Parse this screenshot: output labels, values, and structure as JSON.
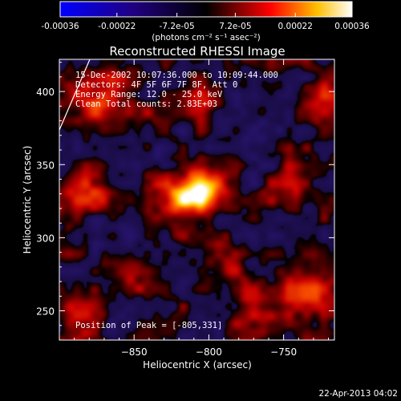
{
  "colorbar": {
    "tick_labels": [
      "-0.00036",
      "-0.00022",
      "-7.2e-05",
      "7.2e-05",
      "0.00022",
      "0.00036"
    ],
    "unit_label": "(photons cm⁻² s⁻¹ asec⁻²)",
    "range": [
      -0.00036,
      0.00036
    ]
  },
  "chart_data": {
    "type": "heatmap",
    "title": "Reconstructed RHESSI Image",
    "xlabel": "Heliocentric X (arcsec)",
    "ylabel": "Heliocentric Y (arcsec)",
    "xlim": [
      -900,
      -716
    ],
    "ylim": [
      230,
      422
    ],
    "x_ticks": [
      -850,
      -800,
      -750
    ],
    "y_ticks": [
      250,
      300,
      350,
      400
    ],
    "annotations": [
      "15-Dec-2002 10:07:36.000 to 10:09:44.000",
      "Detectors: 4F 5F 6F 7F 8F, Att 0",
      "Energy Range: 12.0 - 25.0 keV",
      "Clean     Total counts: 2.83E+03"
    ],
    "peak_label": "Position of Peak = [-805,331]",
    "peak": {
      "x": -805,
      "y": 331,
      "value": 0.00036
    },
    "sources": [
      {
        "x": -805,
        "y": 331,
        "sigma": 10,
        "amp": 1.0
      },
      {
        "x": -825,
        "y": 325,
        "sigma": 11,
        "amp": 0.45
      },
      {
        "x": -880,
        "y": 330,
        "sigma": 12,
        "amp": 0.4
      },
      {
        "x": -870,
        "y": 390,
        "sigma": 16,
        "amp": 0.4
      },
      {
        "x": -805,
        "y": 395,
        "sigma": 10,
        "amp": 0.3
      },
      {
        "x": -735,
        "y": 265,
        "sigma": 14,
        "amp": 0.4
      },
      {
        "x": -770,
        "y": 250,
        "sigma": 11,
        "amp": 0.35
      },
      {
        "x": -745,
        "y": 335,
        "sigma": 9,
        "amp": 0.25
      },
      {
        "x": -790,
        "y": 283,
        "sigma": 10,
        "amp": 0.3
      },
      {
        "x": -853,
        "y": 275,
        "sigma": 10,
        "amp": 0.25
      },
      {
        "x": -720,
        "y": 395,
        "sigma": 12,
        "amp": 0.3
      },
      {
        "x": -888,
        "y": 250,
        "sigma": 12,
        "amp": 0.3
      },
      {
        "x": -840,
        "y": 355,
        "sigma": 9,
        "amp": -0.25
      },
      {
        "x": -760,
        "y": 380,
        "sigma": 12,
        "amp": -0.2
      },
      {
        "x": -870,
        "y": 305,
        "sigma": 10,
        "amp": -0.2
      }
    ],
    "colormap": [
      "#0000ff",
      "#000000",
      "#ff0000",
      "#ffff00",
      "#ffffff"
    ]
  },
  "timestamp": "22-Apr-2013 04:02"
}
